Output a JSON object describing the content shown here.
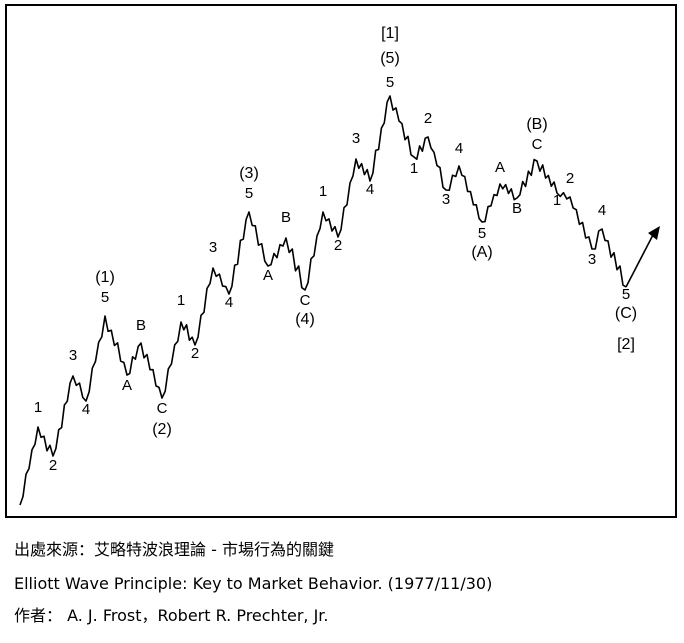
{
  "colors": {
    "line": "#000000",
    "background": "#ffffff"
  },
  "labels": [
    {
      "id": "l1",
      "text": "1"
    },
    {
      "id": "l2",
      "text": "2"
    },
    {
      "id": "l3",
      "text": "3"
    },
    {
      "id": "l4",
      "text": "4"
    },
    {
      "id": "l5",
      "text": "5"
    },
    {
      "id": "lp1",
      "text": "(1)"
    },
    {
      "id": "lA1",
      "text": "A"
    },
    {
      "id": "lB1",
      "text": "B"
    },
    {
      "id": "lC1",
      "text": "C"
    },
    {
      "id": "lp2",
      "text": "(2)"
    },
    {
      "id": "l1b",
      "text": "1"
    },
    {
      "id": "l2b",
      "text": "2"
    },
    {
      "id": "l3b",
      "text": "3"
    },
    {
      "id": "l4b",
      "text": "4"
    },
    {
      "id": "l5b",
      "text": "5"
    },
    {
      "id": "lp3",
      "text": "(3)"
    },
    {
      "id": "lA2",
      "text": "A"
    },
    {
      "id": "lB2",
      "text": "B"
    },
    {
      "id": "lC2",
      "text": "C"
    },
    {
      "id": "lp4",
      "text": "(4)"
    },
    {
      "id": "l1c",
      "text": "1"
    },
    {
      "id": "l2c",
      "text": "2"
    },
    {
      "id": "l3c",
      "text": "3"
    },
    {
      "id": "l4c",
      "text": "4"
    },
    {
      "id": "l5c",
      "text": "5"
    },
    {
      "id": "lp5",
      "text": "(5)"
    },
    {
      "id": "lb1",
      "text": "[1]"
    },
    {
      "id": "l1d",
      "text": "1"
    },
    {
      "id": "l2d",
      "text": "2"
    },
    {
      "id": "l3d",
      "text": "3"
    },
    {
      "id": "l4d",
      "text": "4"
    },
    {
      "id": "l5d",
      "text": "5"
    },
    {
      "id": "lpA",
      "text": "(A)"
    },
    {
      "id": "lA3",
      "text": "A"
    },
    {
      "id": "lB3",
      "text": "B"
    },
    {
      "id": "lC3",
      "text": "C"
    },
    {
      "id": "lpB",
      "text": "(B)"
    },
    {
      "id": "l1e",
      "text": "1"
    },
    {
      "id": "l2e",
      "text": "2"
    },
    {
      "id": "l3e",
      "text": "3"
    },
    {
      "id": "l4e",
      "text": "4"
    },
    {
      "id": "l5e",
      "text": "5"
    },
    {
      "id": "lpC",
      "text": "(C)"
    },
    {
      "id": "lb2",
      "text": "[2]"
    }
  ],
  "caption": {
    "source": "出處來源：艾略特波浪理論 - 市場行為的關鍵",
    "book": "Elliott Wave Principle: Key to Market Behavior.  (1977/11/30)",
    "authors": "作者： A. J. Frost，Robert R. Prechter, Jr."
  }
}
